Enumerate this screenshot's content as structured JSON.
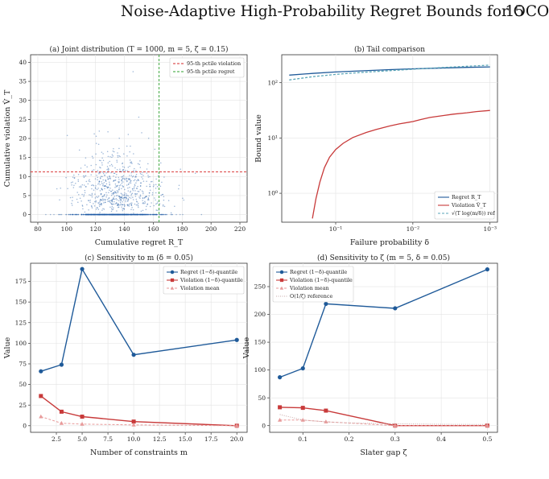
{
  "header": {
    "title": "Noise-Adaptive High-Probability Regret Bounds for OCO",
    "page_number": "15"
  },
  "chart_data": [
    {
      "id": "a",
      "type": "scatter",
      "title": "(a) Joint distribution (T = 1000, m = 5, ζ = 0.15)",
      "xlabel": "Cumulative regret R_T",
      "ylabel": "Cumulative violation V̂_T",
      "xlim": [
        75,
        225
      ],
      "ylim": [
        -2,
        42
      ],
      "xticks": [
        80,
        100,
        120,
        140,
        160,
        180,
        200,
        220
      ],
      "yticks": [
        0,
        5,
        10,
        15,
        20,
        25,
        30,
        35,
        40
      ],
      "grid": true,
      "legend_position": "top-right",
      "reference_lines": [
        {
          "name": "95-th pctile violation",
          "orientation": "horizontal",
          "value": 11.2,
          "color": "#d62728",
          "style": "dashed"
        },
        {
          "name": "95-th pctile regret",
          "orientation": "vertical",
          "value": 164,
          "color": "#2ca02c",
          "style": "dashed"
        }
      ],
      "scatter_summary": {
        "regret_center": 135,
        "regret_spread": 15,
        "fraction_at_zero_violation": 0.55,
        "max_violation": 40,
        "color": "#1f5aa6"
      }
    },
    {
      "id": "b",
      "type": "line",
      "title": "(b) Tail comparison",
      "xlabel": "Failure probability δ",
      "ylabel": "Bound value",
      "xscale": "log-reversed",
      "yscale": "log",
      "xlim": [
        0.5,
        0.0008
      ],
      "ylim": [
        0.3,
        320
      ],
      "xtick_labels": [
        "10^-1",
        "10^-2",
        "10^-3"
      ],
      "xtick_values": [
        0.1,
        0.01,
        0.001
      ],
      "ytick_labels": [
        "10^0",
        "10^1",
        "10^2"
      ],
      "ytick_values": [
        1,
        10,
        100
      ],
      "grid": true,
      "legend_position": "bottom-right",
      "series": [
        {
          "name": "Regret R_T",
          "color": "#1f5a99",
          "style": "solid",
          "x": [
            0.4,
            0.2,
            0.1,
            0.05,
            0.02,
            0.01,
            0.005,
            0.002,
            0.001
          ],
          "y": [
            137,
            147,
            156,
            163,
            172,
            178,
            183,
            189,
            193
          ]
        },
        {
          "name": "Violation V̂_T",
          "color": "#c83a3a",
          "style": "solid",
          "x": [
            0.2,
            0.18,
            0.16,
            0.14,
            0.12,
            0.1,
            0.08,
            0.06,
            0.04,
            0.03,
            0.02,
            0.015,
            0.01,
            0.008,
            0.006,
            0.004,
            0.003,
            0.002,
            0.0015,
            0.001
          ],
          "y": [
            0.35,
            0.8,
            1.6,
            2.9,
            4.5,
            6.2,
            8.0,
            10.2,
            12.6,
            14.2,
            16.5,
            18.0,
            19.8,
            21.5,
            23.5,
            25.5,
            27.0,
            28.5,
            30.0,
            31.5
          ]
        },
        {
          "name": "√(T log(m/δ)) ref",
          "color": "#5aa6b8",
          "style": "dashed",
          "x": [
            0.4,
            0.2,
            0.1,
            0.05,
            0.02,
            0.01,
            0.005,
            0.002,
            0.001
          ],
          "y": [
            112,
            128,
            141,
            152,
            165,
            175,
            185,
            198,
            208
          ]
        }
      ]
    },
    {
      "id": "c",
      "type": "line",
      "title": "(c) Sensitivity to m (δ = 0.05)",
      "xlabel": "Number of constraints m",
      "ylabel": "Value",
      "xlim": [
        0,
        21
      ],
      "ylim": [
        -8,
        197
      ],
      "xticks": [
        "2.5",
        "5.0",
        "7.5",
        "10.0",
        "12.5",
        "15.0",
        "17.5",
        "20.0"
      ],
      "xtick_values": [
        2.5,
        5,
        7.5,
        10,
        12.5,
        15,
        17.5,
        20
      ],
      "yticks": [
        "0",
        "25",
        "50",
        "75",
        "100",
        "125",
        "150",
        "175"
      ],
      "ytick_values": [
        0,
        25,
        50,
        75,
        100,
        125,
        150,
        175
      ],
      "grid": true,
      "legend_position": "top-right",
      "x": [
        1,
        3,
        5,
        10,
        20
      ],
      "series": [
        {
          "name": "Regret (1−δ)-quantile",
          "color": "#1f5a99",
          "marker": "circle",
          "style": "solid",
          "values": [
            66,
            74,
            190,
            86,
            104
          ]
        },
        {
          "name": "Violation (1−δ)-quantile",
          "color": "#c83a3a",
          "marker": "square",
          "style": "solid",
          "values": [
            36,
            17,
            11,
            5,
            0
          ]
        },
        {
          "name": "Violation mean",
          "color": "#e89a9a",
          "marker": "triangle",
          "style": "dashed",
          "values": [
            11,
            3,
            2,
            1,
            0
          ]
        }
      ]
    },
    {
      "id": "d",
      "type": "line",
      "title": "(d) Sensitivity to ζ (m = 5, δ = 0.05)",
      "xlabel": "Slater gap ζ",
      "ylabel": "Value",
      "xlim": [
        0.028,
        0.522
      ],
      "ylim": [
        -12,
        292
      ],
      "xticks": [
        "0.1",
        "0.2",
        "0.3",
        "0.4",
        "0.5"
      ],
      "xtick_values": [
        0.1,
        0.2,
        0.3,
        0.4,
        0.5
      ],
      "yticks": [
        "0",
        "50",
        "100",
        "150",
        "200",
        "250"
      ],
      "ytick_values": [
        0,
        50,
        100,
        150,
        200,
        250
      ],
      "grid": true,
      "legend_position": "top-left",
      "x": [
        0.05,
        0.1,
        0.15,
        0.3,
        0.5
      ],
      "series": [
        {
          "name": "Regret (1−δ)-quantile",
          "color": "#1f5a99",
          "marker": "circle",
          "style": "solid",
          "values": [
            87,
            103,
            219,
            211,
            281
          ]
        },
        {
          "name": "Violation (1−δ)-quantile",
          "color": "#c83a3a",
          "marker": "square",
          "style": "solid",
          "values": [
            33,
            32,
            27,
            0,
            0
          ]
        },
        {
          "name": "Violation mean",
          "color": "#e89a9a",
          "marker": "triangle",
          "style": "dashed",
          "values": [
            10,
            10,
            7,
            0,
            0
          ]
        },
        {
          "name": "O(1/ζ) reference",
          "color": "#c8a8a8",
          "marker": "none",
          "style": "dotted",
          "x": [
            0.05,
            0.1,
            0.15,
            0.2,
            0.3,
            0.4,
            0.5
          ],
          "values": [
            20,
            10,
            6.7,
            5,
            3.3,
            2.5,
            2
          ]
        }
      ]
    }
  ]
}
